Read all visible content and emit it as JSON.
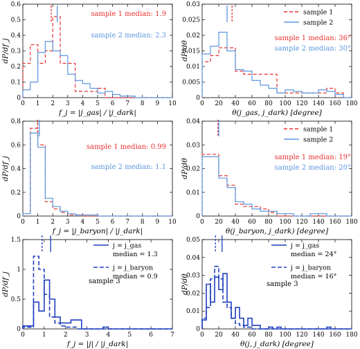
{
  "colors": {
    "red": "#e8302f",
    "blue": "#5b95e0",
    "navy": "#1f3fbf"
  },
  "chart_data": [
    {
      "type": "histogram",
      "xlim": [
        0,
        10
      ],
      "ylim": [
        0,
        0.6
      ],
      "xticks": [
        "0",
        "1",
        "2",
        "3",
        "4",
        "5",
        "6",
        "7",
        "8",
        "9",
        "10"
      ],
      "yticks": [
        "0",
        "0.1",
        "0.2",
        "0.3",
        "0.4",
        "0.5",
        "0.6"
      ],
      "xlabel": "f_j = |j_gas| / |j_dark|",
      "ylabel": "dP/df_j",
      "bins": [
        0,
        0.5,
        1,
        1.5,
        2,
        2.5,
        3,
        3.5,
        4,
        4.5,
        5,
        5.5,
        6,
        6.5,
        7,
        7.5,
        8,
        8.5,
        9,
        9.5,
        10
      ],
      "series": [
        {
          "name": "sample 1",
          "color": "#e8302f",
          "dash": "5,3",
          "values": [
            0.22,
            0.34,
            0.22,
            0.3,
            0.52,
            0.22,
            0.22,
            0.04,
            0.04,
            0.04,
            0.06,
            0.0,
            0.0,
            0.0,
            0,
            0,
            0,
            0,
            0,
            0
          ],
          "median": 1.9
        },
        {
          "name": "sample 2",
          "color": "#5b95e0",
          "dash": "",
          "values": [
            0.05,
            0.1,
            0.29,
            0.36,
            0.3,
            0.27,
            0.15,
            0.11,
            0.09,
            0.06,
            0.03,
            0.04,
            0.02,
            0.01,
            0.01,
            0.0,
            0,
            0,
            0,
            0
          ],
          "median": 2.3
        }
      ],
      "annotations": [
        {
          "text": "sample 1 median: 1.9",
          "color": "#e8302f"
        },
        {
          "text": "sample 2 median: 2.3",
          "color": "#5b95e0"
        }
      ]
    },
    {
      "type": "histogram",
      "xlim": [
        0,
        180
      ],
      "ylim": [
        0,
        0.03
      ],
      "xticks": [
        "0",
        "20",
        "40",
        "60",
        "80",
        "100",
        "120",
        "140",
        "160",
        "180"
      ],
      "yticks": [
        "0",
        "0.005",
        "0.01",
        "0.015",
        "0.02",
        "0.025",
        "0.03"
      ],
      "xlabel": "θ(j_gas, j_dark) [degree]",
      "ylabel": "dP/dθ",
      "bins": [
        0,
        10,
        20,
        30,
        40,
        50,
        60,
        70,
        80,
        90,
        100,
        110,
        120,
        130,
        140,
        150,
        160,
        170,
        180
      ],
      "series": [
        {
          "name": "sample 1",
          "color": "#e8302f",
          "dash": "5,3",
          "values": [
            0.0115,
            0.0135,
            0.016,
            0.016,
            0.0085,
            0.0075,
            0.0075,
            0.0075,
            0.0075,
            0.0015,
            0.0015,
            0.0015,
            0.0015,
            0.0015,
            0.0015,
            0.003,
            0.0015,
            0.0
          ],
          "median": 36
        },
        {
          "name": "sample 2",
          "color": "#5b95e0",
          "dash": "",
          "values": [
            0.014,
            0.0165,
            0.021,
            0.015,
            0.009,
            0.0085,
            0.0055,
            0.004,
            0.003,
            0.0015,
            0.0025,
            0.002,
            0.0015,
            0.0015,
            0.0025,
            0.002,
            0.001,
            0.0
          ],
          "median": 30
        }
      ],
      "legend": [
        {
          "text": "sample 1",
          "color": "#e8302f",
          "dash": "5,3"
        },
        {
          "text": "sample 2",
          "color": "#5b95e0",
          "dash": ""
        }
      ],
      "annotations": [
        {
          "text": "sample 1 median: 36°",
          "color": "#e8302f"
        },
        {
          "text": "sample 2 median: 30°",
          "color": "#5b95e0"
        }
      ]
    },
    {
      "type": "histogram",
      "xlim": [
        0,
        10
      ],
      "ylim": [
        0,
        0.8
      ],
      "xticks": [
        "0",
        "1",
        "2",
        "3",
        "4",
        "5",
        "6",
        "7",
        "8",
        "9",
        "10"
      ],
      "yticks": [
        "0",
        "0.2",
        "0.4",
        "0.6",
        "0.8"
      ],
      "xlabel": "f_j = |j_baryon| / |j_dark|",
      "ylabel": "dP/df_j",
      "bins": [
        0,
        0.5,
        1,
        1.5,
        2,
        2.5,
        3,
        3.5,
        4,
        4.5,
        5,
        5.5,
        6,
        6.5,
        7,
        7.5,
        8,
        8.5,
        9,
        9.5,
        10
      ],
      "series": [
        {
          "name": "sample 1",
          "color": "#e8302f",
          "dash": "5,3",
          "values": [
            0.02,
            0.74,
            0.6,
            0.12,
            0.06,
            0.03,
            0.01,
            0.01,
            0.0,
            0,
            0,
            0,
            0,
            0,
            0,
            0,
            0,
            0,
            0,
            0
          ],
          "median": 0.99
        },
        {
          "name": "sample 2",
          "color": "#5b95e0",
          "dash": "",
          "values": [
            0.02,
            0.7,
            0.58,
            0.15,
            0.08,
            0.04,
            0.02,
            0.01,
            0.01,
            0.01,
            0,
            0,
            0,
            0,
            0,
            0,
            0,
            0,
            0,
            0
          ],
          "median": 1.1
        }
      ],
      "annotations": [
        {
          "text": "sample 1 median: 0.99",
          "color": "#e8302f"
        },
        {
          "text": "sample 2 median: 1.1",
          "color": "#5b95e0"
        }
      ]
    },
    {
      "type": "histogram",
      "xlim": [
        0,
        180
      ],
      "ylim": [
        0,
        0.04
      ],
      "xticks": [
        "0",
        "20",
        "40",
        "60",
        "80",
        "100",
        "120",
        "140",
        "160",
        "180"
      ],
      "yticks": [
        "0",
        "0.01",
        "0.02",
        "0.03",
        "0.04"
      ],
      "xlabel": "θ(j_baryon, j_dark) [degree]",
      "ylabel": "dP/dθ",
      "bins": [
        0,
        10,
        20,
        30,
        40,
        50,
        60,
        70,
        80,
        90,
        100,
        110,
        120,
        130,
        140,
        150,
        160,
        170,
        180
      ],
      "series": [
        {
          "name": "sample 1",
          "color": "#e8302f",
          "dash": "5,3",
          "values": [
            0.026,
            0.026,
            0.017,
            0.013,
            0.005,
            0.004,
            0.004,
            0.003,
            0.0015,
            0.0,
            0,
            0,
            0,
            0,
            0,
            0,
            0,
            0
          ],
          "median": 19
        },
        {
          "name": "sample 2",
          "color": "#5b95e0",
          "dash": "",
          "values": [
            0.025,
            0.025,
            0.016,
            0.012,
            0.006,
            0.005,
            0.003,
            0.002,
            0.002,
            0.001,
            0.001,
            0.0,
            0.0,
            0.001,
            0.001,
            0,
            0,
            0
          ],
          "median": 20
        }
      ],
      "legend": [
        {
          "text": "sample 1",
          "color": "#e8302f",
          "dash": "5,3"
        },
        {
          "text": "sample 2",
          "color": "#5b95e0",
          "dash": ""
        }
      ],
      "annotations": [
        {
          "text": "sample 1 median: 19°",
          "color": "#e8302f"
        },
        {
          "text": "sample 2 median: 20°",
          "color": "#5b95e0"
        }
      ]
    },
    {
      "type": "histogram",
      "xlim": [
        0,
        7
      ],
      "ylim": [
        0,
        1.5
      ],
      "xticks": [
        "0",
        "1",
        "2",
        "3",
        "4",
        "5",
        "6",
        "7"
      ],
      "yticks": [
        "0",
        "0.5",
        "1",
        "1.5"
      ],
      "xlabel": "f_j = |j| / |j_dark|",
      "ylabel": "dP/df_j",
      "bins": [
        0,
        0.25,
        0.5,
        0.75,
        1,
        1.25,
        1.5,
        1.75,
        2,
        2.25,
        2.5,
        2.75,
        3,
        3.25,
        3.5,
        3.75,
        4,
        4.25,
        4.5,
        4.75,
        5,
        5.25,
        5.5,
        5.75,
        6,
        6.25,
        6.5,
        6.75,
        7
      ],
      "series": [
        {
          "name": "j = j_gas",
          "color": "#1f3fbf",
          "dash": "",
          "values": [
            0.05,
            0.05,
            0.45,
            0.3,
            0.82,
            0.5,
            0.2,
            0.1,
            0.1,
            0.15,
            0.15,
            0,
            0,
            0,
            0,
            0.03,
            0,
            0,
            0,
            0,
            0,
            0,
            0,
            0,
            0,
            0,
            0,
            0
          ],
          "median": 1.3
        },
        {
          "name": "j = j_baryon",
          "color": "#1f3fbf",
          "dash": "6,3",
          "values": [
            0.03,
            0.03,
            1.22,
            1.0,
            0.58,
            0.2,
            0.1,
            0.05,
            0.03,
            0.03,
            0,
            0,
            0,
            0,
            0,
            0,
            0,
            0,
            0,
            0,
            0,
            0,
            0,
            0,
            0,
            0,
            0,
            0
          ],
          "median": 0.9
        }
      ],
      "legend": [
        {
          "text": "j = j_gas",
          "sub": "median = 1.3",
          "color": "#1f3fbf",
          "dash": ""
        },
        {
          "text": "j = j_baryon",
          "sub": "median = 0.9",
          "color": "#1f3fbf",
          "dash": "6,3"
        }
      ],
      "annotations": [
        {
          "text": "sample 3",
          "color": "#000000"
        }
      ]
    },
    {
      "type": "histogram",
      "xlim": [
        0,
        180
      ],
      "ylim": [
        0,
        0.05
      ],
      "xticks": [
        "0",
        "20",
        "40",
        "60",
        "80",
        "100",
        "120",
        "140",
        "160",
        "180"
      ],
      "yticks": [
        "0",
        "0.01",
        "0.02",
        "0.03",
        "0.04",
        "0.05"
      ],
      "xlabel": "θ(j, j_dark) [degree]",
      "ylabel": "dP/dθ",
      "bins": [
        0,
        5,
        10,
        15,
        20,
        25,
        30,
        35,
        40,
        45,
        50,
        55,
        60,
        65,
        70,
        75,
        80,
        85,
        90,
        95,
        100,
        105,
        110,
        115,
        120,
        125,
        130,
        135,
        140,
        145,
        150,
        155,
        160,
        165,
        170,
        175,
        180
      ],
      "series": [
        {
          "name": "j = j_gas",
          "color": "#1f3fbf",
          "dash": "",
          "values": [
            0.005,
            0.025,
            0.015,
            0.029,
            0.022,
            0.031,
            0.015,
            0.006,
            0.012,
            0.006,
            0.002,
            0.006,
            0.002,
            0.002,
            0.0,
            0.0,
            0.001,
            0.0,
            0.001,
            0,
            0,
            0,
            0,
            0,
            0,
            0,
            0,
            0,
            0,
            0,
            0.001,
            0,
            0,
            0,
            0,
            0
          ],
          "median": 24
        },
        {
          "name": "j = j_baryon",
          "color": "#1f3fbf",
          "dash": "6,3",
          "values": [
            0.006,
            0.012,
            0.028,
            0.035,
            0.028,
            0.015,
            0.012,
            0.006,
            0.003,
            0.002,
            0.001,
            0.001,
            0.0,
            0.0,
            0.0,
            0,
            0,
            0,
            0,
            0,
            0,
            0,
            0,
            0,
            0,
            0,
            0,
            0,
            0,
            0,
            0,
            0,
            0,
            0,
            0,
            0
          ],
          "median": 16
        }
      ],
      "legend": [
        {
          "text": "j = j_gas",
          "sub": "median = 24°",
          "color": "#1f3fbf",
          "dash": ""
        },
        {
          "text": "j = j_baryon",
          "sub": "median = 16°",
          "color": "#1f3fbf",
          "dash": "6,3"
        }
      ],
      "annotations": [
        {
          "text": "sample 3",
          "color": "#000000"
        }
      ]
    }
  ]
}
